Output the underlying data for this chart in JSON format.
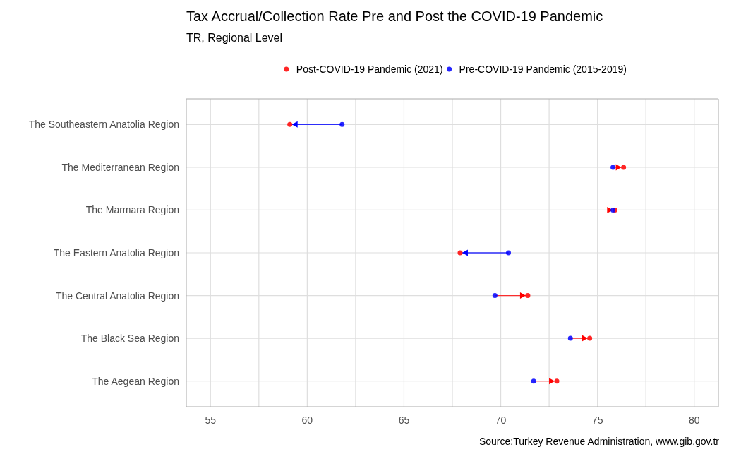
{
  "chart_data": {
    "type": "scatter",
    "title": "Tax Accrual/Collection Rate Pre and Post the COVID-19 Pandemic",
    "subtitle": "TR, Regional Level",
    "annotations": [
      "Source:Turkey Revenue Administration, www.gib.gov.tr"
    ],
    "categories": [
      "The Southeastern Anatolia Region",
      "The Mediterranean Region",
      "The Marmara Region",
      "The Eastern Anatolia Region",
      "The Central Anatolia Region",
      "The Black Sea Region",
      "The Aegean Region"
    ],
    "orientation": "horizontal",
    "series": [
      {
        "name": "Post-COVID-19 Pandemic (2021)",
        "color": "#ff0000",
        "values": [
          59.1,
          76.35,
          75.9,
          67.9,
          71.4,
          74.6,
          72.9
        ]
      },
      {
        "name": "Pre-COVID-19 Pandemic (2015-2019)",
        "color": "#0000ff",
        "values": [
          61.8,
          75.8,
          75.8,
          70.4,
          69.7,
          73.6,
          71.7
        ]
      }
    ],
    "xlim": [
      53.75,
      81.25
    ],
    "xticks": [
      55,
      {
        "value": 57.5,
        "label": null
      },
      60,
      {
        "value": 62.5,
        "label": null
      },
      65,
      {
        "value": 67.5,
        "label": null
      },
      70,
      {
        "value": 72.5,
        "label": null
      },
      75,
      {
        "value": 77.5,
        "label": null
      },
      80
    ],
    "grid": true,
    "legend": "top",
    "marker": "circle"
  }
}
